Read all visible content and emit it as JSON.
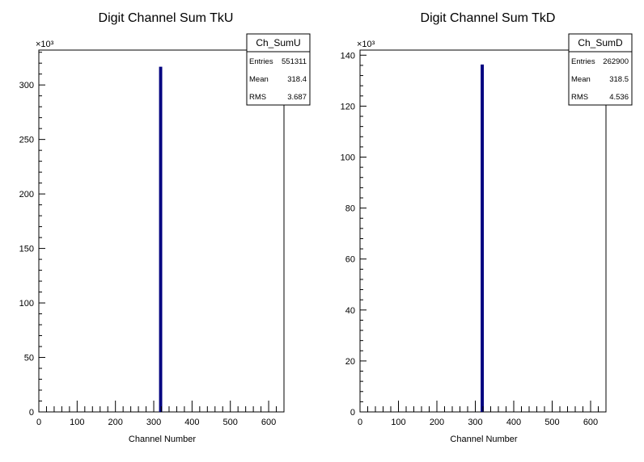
{
  "chart_data": [
    {
      "type": "bar",
      "title": "Digit Channel Sum TkU",
      "xlabel": "Channel Number",
      "ylabel": "",
      "xlim": [
        0,
        640
      ],
      "ylim": [
        0,
        332
      ],
      "x_ticks": [
        0,
        100,
        200,
        300,
        400,
        500,
        600
      ],
      "y_ticks": [
        0,
        50,
        100,
        150,
        200,
        250,
        300
      ],
      "y_scale_label": "×10³",
      "bin_width": 4,
      "bins": [
        {
          "x": 318,
          "value": 316
        }
      ],
      "series_color": "#000080",
      "stats": {
        "name": "Ch_SumU",
        "rows": [
          {
            "label": "Entries",
            "value": "551311"
          },
          {
            "label": "Mean",
            "value": "318.4"
          },
          {
            "label": "RMS",
            "value": "3.687"
          }
        ]
      }
    },
    {
      "type": "bar",
      "title": "Digit Channel Sum TkD",
      "xlabel": "Channel Number",
      "ylabel": "",
      "xlim": [
        0,
        640
      ],
      "ylim": [
        0,
        142
      ],
      "x_ticks": [
        0,
        100,
        200,
        300,
        400,
        500,
        600
      ],
      "y_ticks": [
        0,
        20,
        40,
        60,
        80,
        100,
        120,
        140
      ],
      "y_scale_label": "×10³",
      "bin_width": 4,
      "bins": [
        {
          "x": 318,
          "value": 136
        }
      ],
      "series_color": "#000080",
      "stats": {
        "name": "Ch_SumD",
        "rows": [
          {
            "label": "Entries",
            "value": "262900"
          },
          {
            "label": "Mean",
            "value": "318.5"
          },
          {
            "label": "RMS",
            "value": "4.536"
          }
        ]
      }
    }
  ]
}
